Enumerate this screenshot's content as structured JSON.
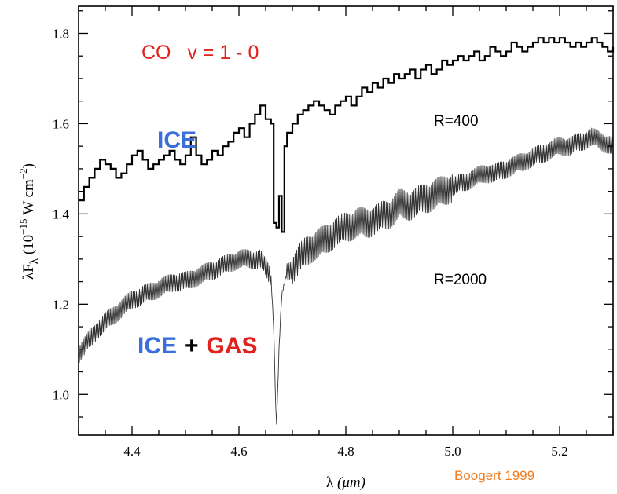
{
  "chart_data": {
    "type": "line",
    "title": "",
    "xlabel": "λ (μm)",
    "ylabel": "λF_λ (10^-15 W cm^-2)",
    "ylabel_parts": {
      "main": "λF",
      "sub": "λ",
      "units_open": " (10",
      "exp": "−15",
      "units_mid": " W cm",
      "exp2": "−2",
      "units_close": ")"
    },
    "xlabel_parts": {
      "sym": "λ",
      "units": " (μm)"
    },
    "xlim": [
      4.3,
      5.3
    ],
    "ylim": [
      0.91,
      1.86
    ],
    "xticks": [
      4.4,
      4.6,
      4.8,
      5.0,
      5.2
    ],
    "xtick_labels": [
      "4.4",
      "4.6",
      "4.8",
      "5.0",
      "5.2"
    ],
    "yticks": [
      1.0,
      1.2,
      1.4,
      1.6,
      1.8
    ],
    "ytick_labels": [
      "1.0",
      "1.2",
      "1.4",
      "1.6",
      "1.8"
    ],
    "grid": false,
    "series": [
      {
        "name": "R=400",
        "style": "step",
        "color": "#000000",
        "x": [
          4.3,
          4.31,
          4.32,
          4.33,
          4.34,
          4.35,
          4.36,
          4.37,
          4.38,
          4.39,
          4.4,
          4.41,
          4.42,
          4.43,
          4.44,
          4.45,
          4.46,
          4.47,
          4.48,
          4.49,
          4.5,
          4.51,
          4.52,
          4.53,
          4.54,
          4.55,
          4.56,
          4.57,
          4.58,
          4.59,
          4.6,
          4.61,
          4.62,
          4.63,
          4.64,
          4.65,
          4.66,
          4.665,
          4.67,
          4.675,
          4.68,
          4.685,
          4.69,
          4.7,
          4.71,
          4.72,
          4.73,
          4.74,
          4.75,
          4.76,
          4.77,
          4.78,
          4.79,
          4.8,
          4.81,
          4.82,
          4.83,
          4.84,
          4.85,
          4.86,
          4.87,
          4.88,
          4.89,
          4.9,
          4.91,
          4.92,
          4.93,
          4.94,
          4.95,
          4.96,
          4.97,
          4.98,
          4.99,
          5.0,
          5.01,
          5.02,
          5.03,
          5.04,
          5.05,
          5.06,
          5.07,
          5.08,
          5.09,
          5.1,
          5.11,
          5.12,
          5.13,
          5.14,
          5.15,
          5.16,
          5.17,
          5.18,
          5.19,
          5.2,
          5.21,
          5.22,
          5.23,
          5.24,
          5.25,
          5.26,
          5.27,
          5.28,
          5.29,
          5.3
        ],
        "y": [
          1.43,
          1.46,
          1.48,
          1.5,
          1.52,
          1.51,
          1.5,
          1.48,
          1.49,
          1.51,
          1.53,
          1.54,
          1.52,
          1.5,
          1.51,
          1.52,
          1.53,
          1.54,
          1.52,
          1.51,
          1.53,
          1.57,
          1.53,
          1.51,
          1.52,
          1.54,
          1.53,
          1.55,
          1.56,
          1.58,
          1.59,
          1.57,
          1.6,
          1.62,
          1.64,
          1.61,
          1.6,
          1.38,
          1.37,
          1.44,
          1.36,
          1.55,
          1.58,
          1.6,
          1.62,
          1.63,
          1.64,
          1.65,
          1.64,
          1.63,
          1.62,
          1.64,
          1.65,
          1.66,
          1.64,
          1.66,
          1.68,
          1.67,
          1.69,
          1.68,
          1.7,
          1.69,
          1.71,
          1.7,
          1.71,
          1.72,
          1.7,
          1.72,
          1.73,
          1.71,
          1.72,
          1.74,
          1.73,
          1.74,
          1.75,
          1.74,
          1.75,
          1.76,
          1.74,
          1.75,
          1.77,
          1.76,
          1.75,
          1.76,
          1.78,
          1.77,
          1.76,
          1.77,
          1.78,
          1.79,
          1.78,
          1.79,
          1.78,
          1.79,
          1.78,
          1.77,
          1.78,
          1.77,
          1.78,
          1.79,
          1.78,
          1.77,
          1.76,
          1.77
        ]
      },
      {
        "name": "R=2000",
        "style": "line",
        "color": "#333333",
        "x": [
          4.3,
          4.32,
          4.34,
          4.36,
          4.38,
          4.4,
          4.42,
          4.44,
          4.46,
          4.48,
          4.5,
          4.52,
          4.54,
          4.56,
          4.58,
          4.6,
          4.62,
          4.64,
          4.65,
          4.66,
          4.665,
          4.67,
          4.675,
          4.68,
          4.69,
          4.7,
          4.72,
          4.74,
          4.76,
          4.78,
          4.8,
          4.82,
          4.84,
          4.86,
          4.88,
          4.9,
          4.92,
          4.94,
          4.96,
          4.98,
          5.0,
          5.02,
          5.04,
          5.06,
          5.08,
          5.1,
          5.12,
          5.14,
          5.16,
          5.18,
          5.2,
          5.22,
          5.24,
          5.26,
          5.28,
          5.3
        ],
        "y": [
          1.09,
          1.12,
          1.15,
          1.17,
          1.19,
          1.21,
          1.22,
          1.23,
          1.24,
          1.25,
          1.25,
          1.26,
          1.27,
          1.28,
          1.29,
          1.3,
          1.3,
          1.3,
          1.28,
          1.26,
          1.15,
          0.92,
          1.1,
          1.22,
          1.27,
          1.28,
          1.31,
          1.33,
          1.34,
          1.36,
          1.37,
          1.38,
          1.38,
          1.39,
          1.4,
          1.42,
          1.42,
          1.43,
          1.44,
          1.45,
          1.46,
          1.47,
          1.48,
          1.49,
          1.49,
          1.5,
          1.51,
          1.52,
          1.53,
          1.54,
          1.55,
          1.55,
          1.56,
          1.57,
          1.56,
          1.55
        ]
      }
    ],
    "annotations": {
      "co": "CO   v = 1 - 0",
      "ice_top": "ICE",
      "ice_bottom": "ICE",
      "plus": "+",
      "gas": "GAS",
      "r400": "R=400",
      "r2000": "R=2000",
      "credit": "Boogert 1999"
    },
    "colors": {
      "red": "#e0211c",
      "blue": "#3a6fdc",
      "orange": "#ef7d22"
    }
  }
}
